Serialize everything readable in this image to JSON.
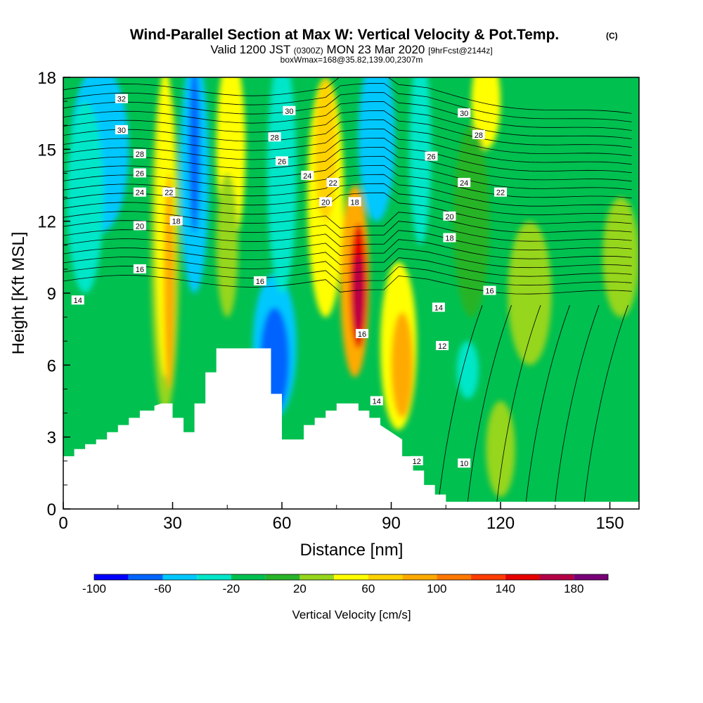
{
  "chart_data": {
    "type": "heatmap",
    "title": "Wind-Parallel Section at Max W: Vertical Velocity & Pot.Temp.",
    "title_mark": "(C)",
    "subtitle": {
      "prefix": "Valid 1200 JST",
      "utc": "(0300Z)",
      "main": "MON 23 Mar 2020",
      "forecast": "[9hrFcst@2144z]"
    },
    "box_note": "boxWmax=168@35.82,139.00,2307m",
    "xlabel": "Distance [nm]",
    "ylabel": "Height [Kft MSL]",
    "xlim": [
      0,
      158
    ],
    "ylim": [
      0,
      18
    ],
    "x_ticks": [
      0,
      30,
      60,
      90,
      120,
      150
    ],
    "y_ticks": [
      0,
      3,
      6,
      9,
      12,
      15,
      18
    ],
    "colorbar": {
      "label": "Vertical Velocity [cm/s]",
      "levels": [
        -100,
        -80,
        -60,
        -40,
        -20,
        0,
        20,
        40,
        60,
        80,
        100,
        120,
        140,
        160,
        180,
        200
      ],
      "tick_labels": [
        "-100",
        "-60",
        "-20",
        "20",
        "60",
        "100",
        "140",
        "180"
      ],
      "tick_values": [
        -100,
        -60,
        -20,
        20,
        60,
        100,
        140,
        180
      ],
      "colors": [
        "#0000ff",
        "#0064ff",
        "#00c8ff",
        "#00e6c8",
        "#00c050",
        "#28b428",
        "#96d61e",
        "#ffff00",
        "#ffd200",
        "#ffaa00",
        "#ff7800",
        "#ff3c00",
        "#e60000",
        "#b40046",
        "#780078"
      ]
    },
    "terrain_top_kft": [
      2.2,
      2.2,
      2.5,
      2.5,
      2.7,
      2.7,
      2.9,
      2.9,
      3.2,
      3.2,
      3.5,
      3.5,
      3.8,
      3.8,
      4.1,
      4.1,
      4.1,
      4.3,
      4.4,
      4.4,
      4.4,
      4.4,
      3.8,
      3.8,
      3.8,
      3.2,
      3.2,
      3.2,
      4.4,
      4.4,
      5.7,
      5.7,
      6.7,
      6.7,
      6.7,
      6.7,
      6.7,
      6.7,
      6.7,
      4.8,
      4.8,
      4.8,
      2.9,
      2.9,
      2.9,
      3.2,
      3.5,
      3.5,
      3.5,
      3.8,
      3.8,
      4.1,
      4.1,
      4.4,
      4.4,
      4.4,
      4.4,
      4.1,
      4.1,
      3.8,
      3.8,
      3.5,
      3.2,
      2.9,
      2.2,
      2.2,
      1.6,
      1.6,
      1.0,
      1.0,
      0.6,
      0.6,
      0.3,
      0.3
    ],
    "terrain_x_nm": [
      0,
      3,
      3,
      6,
      6,
      9,
      9,
      12,
      12,
      15,
      15,
      18,
      18,
      21,
      21,
      24,
      25,
      25,
      27,
      27,
      30,
      30,
      30,
      33,
      33,
      33,
      36,
      36,
      36,
      39,
      39,
      42,
      42,
      45,
      48,
      51,
      54,
      54,
      57,
      57,
      60,
      60,
      60,
      66,
      66,
      66,
      66,
      69,
      69,
      69,
      72,
      72,
      75,
      75,
      78,
      78,
      81,
      81,
      84,
      84,
      87,
      87,
      90,
      93,
      93,
      96,
      96,
      99,
      99,
      102,
      102,
      105,
      105,
      158
    ],
    "theta_contours": [
      {
        "value": 10,
        "label": "10",
        "lx": 110,
        "ly": 1.9
      },
      {
        "value": 12,
        "label": "12",
        "lx": 97,
        "ly": 2.0
      },
      {
        "value": 12,
        "label": "12",
        "lx": 104,
        "ly": 6.8
      },
      {
        "value": 14,
        "label": "14",
        "lx": 86,
        "ly": 4.5
      },
      {
        "value": 14,
        "label": "14",
        "lx": 103,
        "ly": 8.4
      },
      {
        "value": 14,
        "label": "14",
        "lx": 4,
        "ly": 8.7
      },
      {
        "value": 16,
        "label": "16",
        "lx": 82,
        "ly": 7.3
      },
      {
        "value": 16,
        "label": "16",
        "lx": 21,
        "ly": 10.0
      },
      {
        "value": 16,
        "label": "16",
        "lx": 54,
        "ly": 9.5
      },
      {
        "value": 16,
        "label": "16",
        "lx": 117,
        "ly": 9.1
      },
      {
        "value": 18,
        "label": "18",
        "lx": 31,
        "ly": 12.0
      },
      {
        "value": 18,
        "label": "18",
        "lx": 80,
        "ly": 12.8
      },
      {
        "value": 18,
        "label": "18",
        "lx": 106,
        "ly": 11.3
      },
      {
        "value": 20,
        "label": "20",
        "lx": 21,
        "ly": 11.8
      },
      {
        "value": 20,
        "label": "20",
        "lx": 72,
        "ly": 12.8
      },
      {
        "value": 20,
        "label": "20",
        "lx": 106,
        "ly": 12.2
      },
      {
        "value": 22,
        "label": "22",
        "lx": 29,
        "ly": 13.2
      },
      {
        "value": 22,
        "label": "22",
        "lx": 74,
        "ly": 13.6
      },
      {
        "value": 22,
        "label": "22",
        "lx": 120,
        "ly": 13.2
      },
      {
        "value": 24,
        "label": "24",
        "lx": 21,
        "ly": 13.2
      },
      {
        "value": 24,
        "label": "24",
        "lx": 67,
        "ly": 13.9
      },
      {
        "value": 24,
        "label": "24",
        "lx": 110,
        "ly": 13.6
      },
      {
        "value": 26,
        "label": "26",
        "lx": 21,
        "ly": 14.0
      },
      {
        "value": 26,
        "label": "26",
        "lx": 60,
        "ly": 14.5
      },
      {
        "value": 26,
        "label": "26",
        "lx": 101,
        "ly": 14.7
      },
      {
        "value": 28,
        "label": "28",
        "lx": 21,
        "ly": 14.8
      },
      {
        "value": 28,
        "label": "28",
        "lx": 58,
        "ly": 15.5
      },
      {
        "value": 28,
        "label": "28",
        "lx": 114,
        "ly": 15.6
      },
      {
        "value": 30,
        "label": "30",
        "lx": 16,
        "ly": 15.8
      },
      {
        "value": 30,
        "label": "30",
        "lx": 62,
        "ly": 16.6
      },
      {
        "value": 30,
        "label": "30",
        "lx": 110,
        "ly": 16.5
      },
      {
        "value": 32,
        "label": "32",
        "lx": 16,
        "ly": 17.1
      }
    ]
  }
}
